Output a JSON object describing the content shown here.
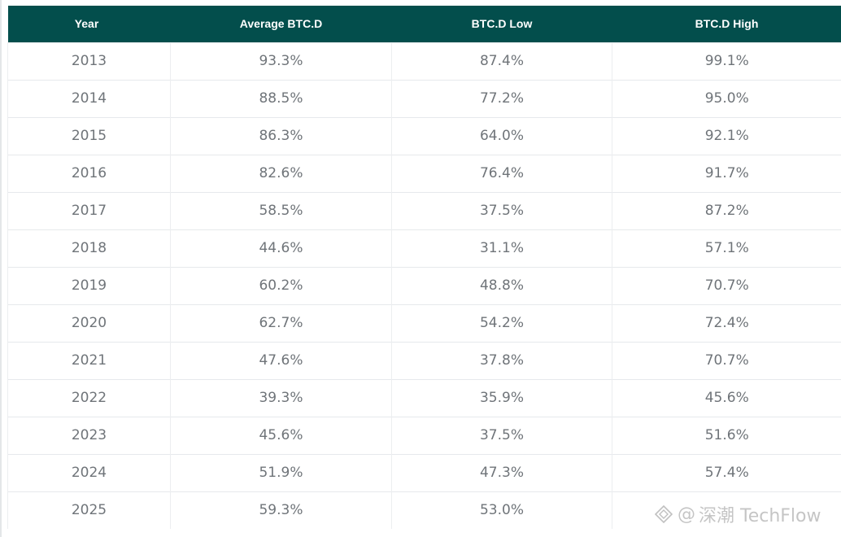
{
  "table": {
    "headers": [
      "Year",
      "Average BTC.D",
      "BTC.D Low",
      "BTC.D High"
    ],
    "rows": [
      [
        "2013",
        "93.3%",
        "87.4%",
        "99.1%"
      ],
      [
        "2014",
        "88.5%",
        "77.2%",
        "95.0%"
      ],
      [
        "2015",
        "86.3%",
        "64.0%",
        "92.1%"
      ],
      [
        "2016",
        "82.6%",
        "76.4%",
        "91.7%"
      ],
      [
        "2017",
        "58.5%",
        "37.5%",
        "87.2%"
      ],
      [
        "2018",
        "44.6%",
        "31.1%",
        "57.1%"
      ],
      [
        "2019",
        "60.2%",
        "48.8%",
        "70.7%"
      ],
      [
        "2020",
        "62.7%",
        "54.2%",
        "72.4%"
      ],
      [
        "2021",
        "47.6%",
        "37.8%",
        "70.7%"
      ],
      [
        "2022",
        "39.3%",
        "35.9%",
        "45.6%"
      ],
      [
        "2023",
        "45.6%",
        "37.5%",
        "51.6%"
      ],
      [
        "2024",
        "51.9%",
        "47.3%",
        "57.4%"
      ],
      [
        "2025",
        "59.3%",
        "53.0%",
        ""
      ]
    ]
  },
  "watermark": {
    "at": "@",
    "text": "深潮 TechFlow",
    "icon": "diamond-logo-icon"
  },
  "colors": {
    "header_bg": "#034e4c",
    "header_text": "#ffffff",
    "cell_text": "#6f7479",
    "grid_line": "#e6e9ec"
  }
}
